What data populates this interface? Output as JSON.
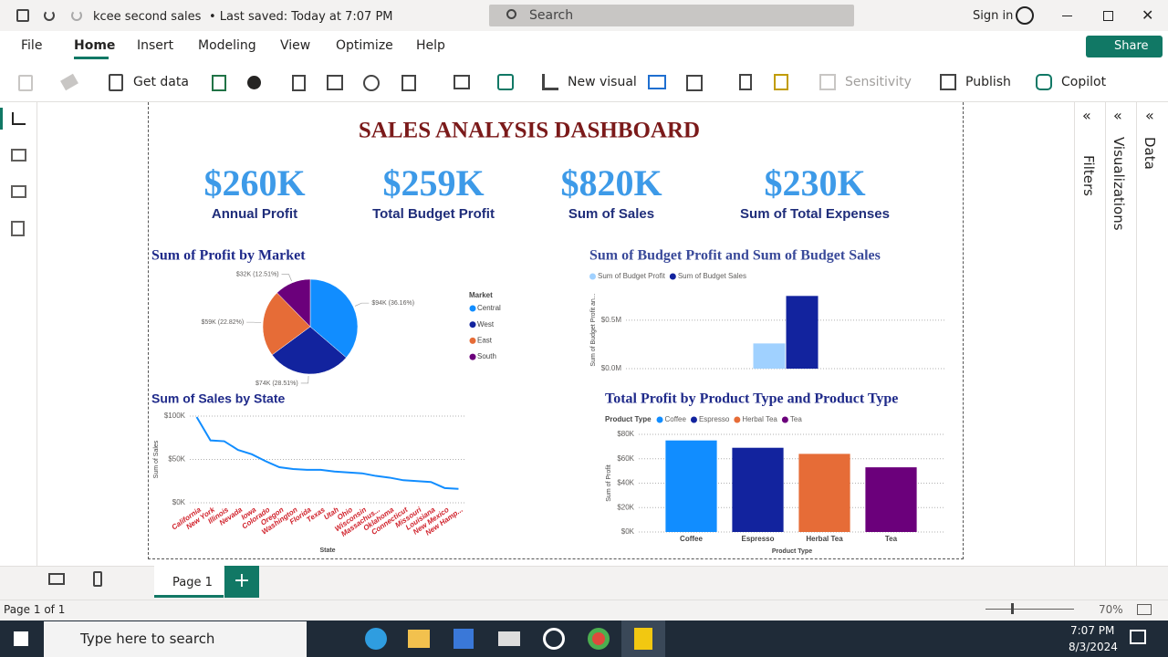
{
  "title_bar": {
    "file_name": "kcee second sales",
    "saved_status": "• Last saved: Today at 7:07 PM",
    "search": "Search",
    "sign_in": "Sign in"
  },
  "menu": {
    "tabs": [
      "File",
      "Home",
      "Insert",
      "Modeling",
      "View",
      "Optimize",
      "Help"
    ],
    "share": "Share"
  },
  "ribbon": {
    "buttons": [
      "Get data",
      "New visual",
      "Sensitivity",
      "Publish",
      "Copilot"
    ]
  },
  "panes": [
    "Filters",
    "Visualizations",
    "Data"
  ],
  "report": {
    "title": "SALES ANALYSIS DASHBOARD",
    "kpis": [
      {
        "value": "$260K",
        "label": "Annual Profit"
      },
      {
        "value": "$259K",
        "label": "Total Budget Profit"
      },
      {
        "value": "$820K",
        "label": "Sum of Sales"
      },
      {
        "value": "$230K",
        "label": "Sum of Total Expenses"
      }
    ],
    "charts": [
      {
        "type": "pie",
        "title": "Sum of Profit by Market",
        "legend_title": "Market",
        "categories": [
          "Central",
          "West",
          "East",
          "South"
        ],
        "values": [
          94,
          74,
          59,
          32
        ],
        "value_labels": [
          "$94K (36.16%)",
          "$74K (28.51%)",
          "$59K (22.82%)",
          "$32K (12.51%)"
        ],
        "colors": [
          "#118DFF",
          "#12239E",
          "#E66C37",
          "#6B007B"
        ]
      },
      {
        "type": "bar",
        "title": "Sum of Budget Profit and Sum of Budget Sales",
        "y_label": "Sum of Budget Profit an...",
        "series": [
          {
            "name": "Sum of Budget Profit",
            "color": "#A0D1FF",
            "values": [
              0.26
            ]
          },
          {
            "name": "Sum of Budget Sales",
            "color": "#12239E",
            "values": [
              0.75
            ]
          }
        ],
        "ylim": [
          0,
          0.8
        ],
        "yticks": [
          {
            "value": 0,
            "label": "$0.0M"
          },
          {
            "value": 0.5,
            "label": "$0.5M"
          }
        ]
      },
      {
        "type": "line",
        "title": "Sum of Sales by State",
        "x_label": "State",
        "y_label": "Sum of Sales",
        "categories": [
          "California",
          "New York",
          "Illinois",
          "Nevada",
          "Iowa",
          "Colorado",
          "Oregon",
          "Washington",
          "Florida",
          "Texas",
          "Utah",
          "Ohio",
          "Wisconsin",
          "Massachus...",
          "Oklahoma",
          "Connecticut",
          "Missouri",
          "Louisiana",
          "New Mexico",
          "New Hamp..."
        ],
        "values": [
          99,
          72,
          71,
          61,
          56,
          48,
          41,
          39,
          38,
          38,
          36,
          35,
          34,
          31,
          29,
          26,
          25,
          24,
          17,
          16
        ],
        "color": "#118DFF",
        "ylim": [
          0,
          100
        ],
        "yticks": [
          {
            "value": 0,
            "label": "$0K"
          },
          {
            "value": 50,
            "label": "$50K"
          },
          {
            "value": 100,
            "label": "$100K"
          }
        ]
      },
      {
        "type": "bar",
        "title": "Total Profit by Product Type and Product Type",
        "legend_title": "Product Type",
        "x_label": "Product Type",
        "y_label": "Sum of Profit",
        "categories": [
          "Coffee",
          "Espresso",
          "Herbal Tea",
          "Tea"
        ],
        "values": [
          75,
          69,
          64,
          53
        ],
        "colors": [
          "#118DFF",
          "#12239E",
          "#E66C37",
          "#6B007B"
        ],
        "ylim": [
          0,
          80
        ],
        "yticks": [
          {
            "value": 0,
            "label": "$0K"
          },
          {
            "value": 20,
            "label": "$20K"
          },
          {
            "value": 40,
            "label": "$40K"
          },
          {
            "value": 60,
            "label": "$60K"
          },
          {
            "value": 80,
            "label": "$80K"
          }
        ]
      }
    ]
  },
  "status_bar": {
    "page_tab": "Page 1",
    "page_count": "Page 1 of 1",
    "zoom": "70%"
  },
  "taskbar": {
    "search": "Type here to search",
    "time": "7:07 PM",
    "date": "8/3/2024"
  }
}
